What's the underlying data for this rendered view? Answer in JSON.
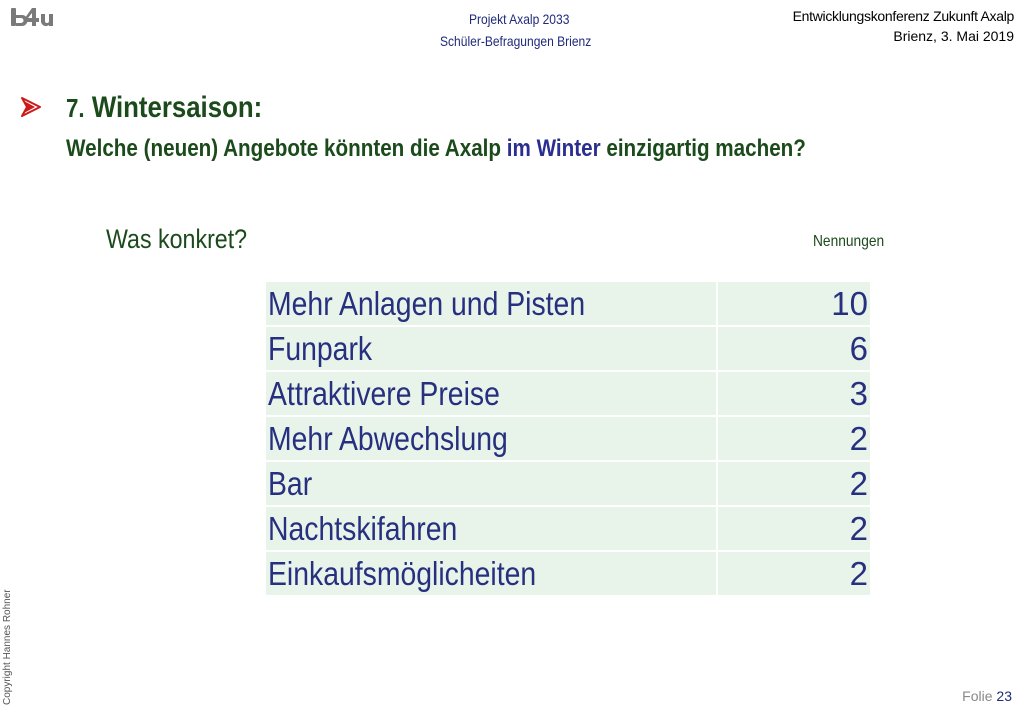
{
  "header": {
    "logo_text": "b4u",
    "project_line1": "Projekt Axalp 2033",
    "project_line2": "Schüler-Befragungen Brienz",
    "event_line1": "Entwicklungskonferenz Zukunft Axalp",
    "event_line2": "Brienz, 3. Mai 2019"
  },
  "question": {
    "number": "7.",
    "title": "Wintersaison:",
    "subtitle_pre": "Welche (neuen) Angebote könnten die Axalp",
    "subtitle_highlight": "im Winter",
    "subtitle_post": "einzigartig machen?"
  },
  "section_label": "Was konkret?",
  "count_header": "Nennungen",
  "answers": [
    {
      "label": "Mehr Anlagen und Pisten",
      "count": "10"
    },
    {
      "label": "Funpark",
      "count": "6"
    },
    {
      "label": "Attraktivere Preise",
      "count": "3"
    },
    {
      "label": "Mehr Abwechslung",
      "count": "2"
    },
    {
      "label": "Bar",
      "count": "2"
    },
    {
      "label": "Nachtskifahren",
      "count": "2"
    },
    {
      "label": "Einkaufsmöglicheiten",
      "count": "2"
    }
  ],
  "footer": {
    "copyright": "Copyright Hannes Rohner",
    "folie_label": "Folie",
    "folie_number": "23"
  },
  "colors": {
    "heading_green": "#1b4a1b",
    "accent_blue": "#2a2f8f",
    "row_background": "#e8f4ea",
    "bullet_red": "#cc1a1a"
  }
}
